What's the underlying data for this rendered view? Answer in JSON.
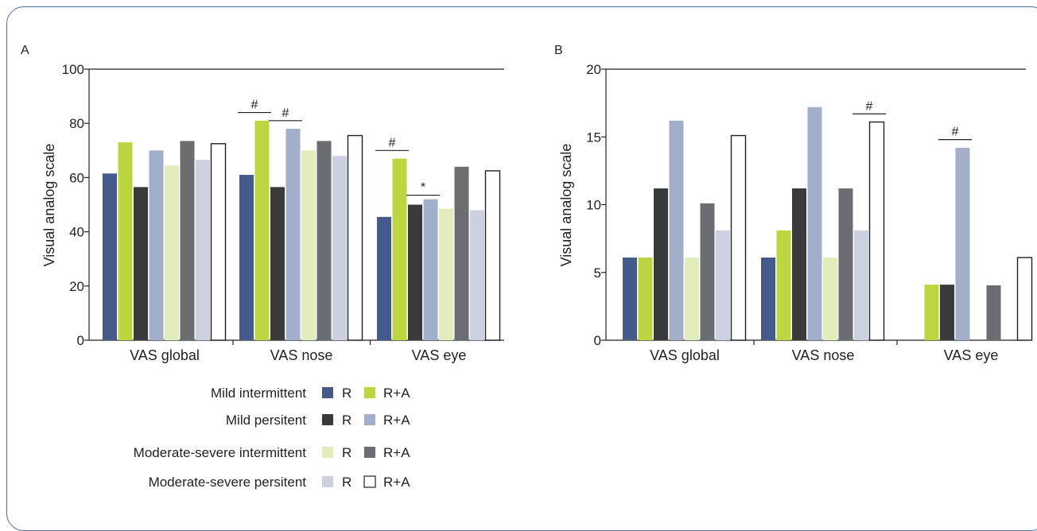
{
  "colors": {
    "mild_intermittent_r": "#445a8a",
    "mild_intermittent_ra": "#bcd641",
    "mild_persistent_r": "#3a3a3a",
    "mild_persistent_ra": "#a3aecb",
    "modsev_intermittent_r": "#e3edbb",
    "modsev_intermittent_ra": "#6b6d71",
    "modsev_persistent_r": "#ccd1e1",
    "modsev_persistent_ra": "#ffffff"
  },
  "legend": {
    "rows": [
      {
        "label": "Mild intermittent",
        "r": "R",
        "ra": "R+A"
      },
      {
        "label": "Mild persitent",
        "r": "R",
        "ra": "R+A"
      },
      {
        "label": "Moderate-severe intermittent",
        "r": "R",
        "ra": "R+A"
      },
      {
        "label": "Moderate-severe persitent",
        "r": "R",
        "ra": "R+A"
      }
    ]
  },
  "chart_data": [
    {
      "panel": "A",
      "type": "bar",
      "ylabel": "Visual analog scale",
      "ylim": [
        0,
        100
      ],
      "yticks": [
        0,
        20,
        40,
        60,
        80,
        100
      ],
      "categories": [
        "VAS global",
        "VAS nose",
        "VAS eye"
      ],
      "series": [
        {
          "values": [
            61.5,
            61,
            45.5
          ]
        },
        {
          "values": [
            73,
            81,
            67
          ]
        },
        {
          "values": [
            56.5,
            56.5,
            50
          ]
        },
        {
          "values": [
            70,
            78,
            52
          ]
        },
        {
          "values": [
            64.5,
            70,
            48.5
          ]
        },
        {
          "values": [
            73.5,
            73.5,
            64
          ]
        },
        {
          "values": [
            66.5,
            68,
            48
          ]
        },
        {
          "values": [
            72.5,
            75.5,
            62.5
          ]
        }
      ],
      "annotations": [
        {
          "text": "#",
          "category": 1,
          "from_series": 0,
          "to_series": 1,
          "y": 84
        },
        {
          "text": "#",
          "category": 1,
          "from_series": 2,
          "to_series": 3,
          "y": 81
        },
        {
          "text": "#",
          "category": 2,
          "from_series": 0,
          "to_series": 1,
          "y": 70
        },
        {
          "text": "*",
          "category": 2,
          "from_series": 2,
          "to_series": 3,
          "y": 53.5
        }
      ]
    },
    {
      "panel": "B",
      "type": "bar",
      "ylabel": "Visual analog scale",
      "ylim": [
        0,
        20
      ],
      "yticks": [
        0,
        5,
        10,
        15,
        20
      ],
      "categories": [
        "VAS global",
        "VAS nose",
        "VAS eye"
      ],
      "series": [
        {
          "values": [
            6.1,
            6.1,
            0
          ]
        },
        {
          "values": [
            6.1,
            8.1,
            4.1
          ]
        },
        {
          "values": [
            11.2,
            11.2,
            4.1
          ]
        },
        {
          "values": [
            16.2,
            17.2,
            14.2
          ]
        },
        {
          "values": [
            6.1,
            6.1,
            0
          ]
        },
        {
          "values": [
            10.1,
            11.2,
            4.05
          ]
        },
        {
          "values": [
            8.1,
            8.1,
            0
          ]
        },
        {
          "values": [
            15.1,
            16.1,
            6.1
          ]
        }
      ],
      "annotations": [
        {
          "text": "#",
          "category": 1,
          "from_series": 6,
          "to_series": 7,
          "y": 16.7
        },
        {
          "text": "#",
          "category": 2,
          "from_series": 2,
          "to_series": 3,
          "y": 14.8
        }
      ]
    }
  ]
}
